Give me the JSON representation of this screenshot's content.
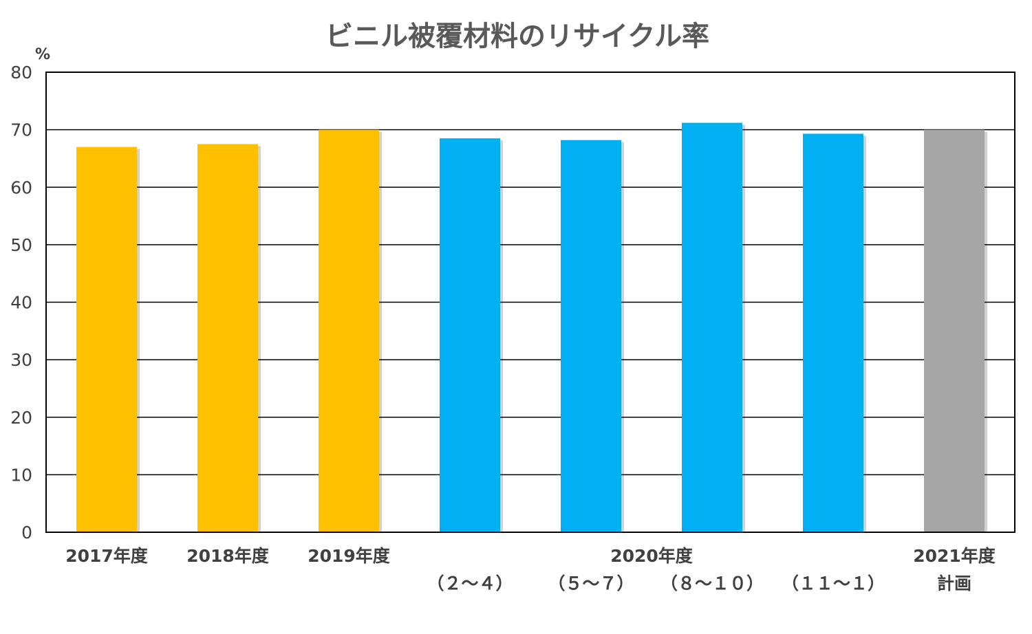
{
  "chart_data": {
    "type": "bar",
    "title": "ビニル被覆材料のリサイクル率",
    "y_unit": "%",
    "ylim": [
      0,
      80
    ],
    "yticks": [
      0,
      10,
      20,
      30,
      40,
      50,
      60,
      70,
      80
    ],
    "grid": true,
    "legend": "none",
    "categories": [
      "2017年度",
      "2018年度",
      "2019年度",
      "2020年度（２～４）",
      "2020年度（５～７）",
      "2020年度（８～１０）",
      "2020年度（１１～１）",
      "2021年度計画"
    ],
    "values": [
      67,
      67.5,
      70,
      68.5,
      68.2,
      71.2,
      69.3,
      70
    ],
    "colors": [
      "#FFC000",
      "#FFC000",
      "#FFC000",
      "#00B0F0",
      "#00B0F0",
      "#00B0F0",
      "#00B0F0",
      "#A6A6A6"
    ],
    "x_labels": [
      {
        "line1": "2017年度",
        "line2": ""
      },
      {
        "line1": "2018年度",
        "line2": ""
      },
      {
        "line1": "2019年度",
        "line2": ""
      },
      {
        "line1": "",
        "line2": "（２～４）"
      },
      {
        "line1": "",
        "line2": "（５～７）"
      },
      {
        "line1": "",
        "line2": "（８～１０）"
      },
      {
        "line1": "",
        "line2": "（１１～１）"
      },
      {
        "line1": "2021年度",
        "line2": "計画"
      }
    ],
    "group_label": "2020年度"
  }
}
